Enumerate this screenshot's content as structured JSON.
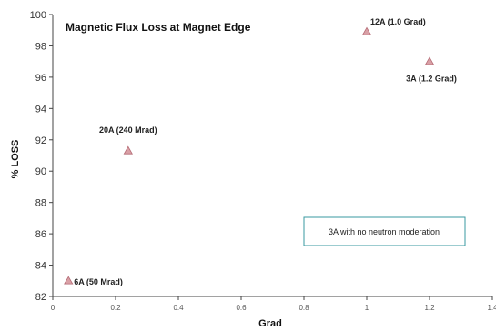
{
  "chart_data": {
    "type": "scatter",
    "title": "Magnetic Flux Loss at Magnet Edge",
    "xlabel": "Grad",
    "ylabel": "% LOSS",
    "xlim": [
      0,
      1.4
    ],
    "ylim": [
      82,
      100
    ],
    "x_ticks": [
      "0",
      "0.2",
      "0.4",
      "0.6",
      "0.8",
      "1",
      "1.2",
      "1.4"
    ],
    "y_ticks": [
      "82",
      "84",
      "86",
      "88",
      "90",
      "92",
      "94",
      "96",
      "98",
      "100"
    ],
    "grid": false,
    "marker": "triangle",
    "marker_color": "#d9a0a6",
    "marker_edge_color": "#b46a74",
    "points": [
      {
        "x": 0.05,
        "y": 83.0,
        "label": "6A (50 Mrad)"
      },
      {
        "x": 0.24,
        "y": 91.3,
        "label": "20A (240 Mrad)"
      },
      {
        "x": 1.0,
        "y": 98.9,
        "label": "12A (1.0 Grad)"
      },
      {
        "x": 1.2,
        "y": 97.0,
        "label": "3A (1.2 Grad)"
      }
    ],
    "annotation": "3A with no neutron moderation",
    "annotation_border_color": "#3a9aa0"
  }
}
